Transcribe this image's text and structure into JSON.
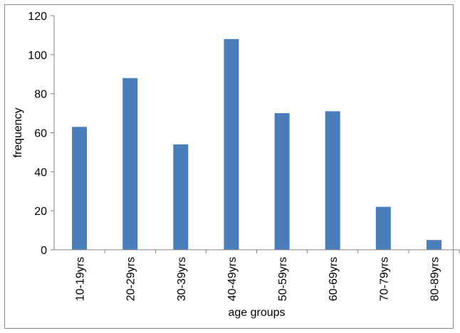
{
  "chart_data": {
    "type": "bar",
    "title": "",
    "xlabel": "age groups",
    "ylabel": "frequency",
    "categories": [
      "10-19yrs",
      "20-29yrs",
      "30-39yrs",
      "40-49yrs",
      "50-59yrs",
      "60-69yrs",
      "70-79yrs",
      "80-89yrs"
    ],
    "values": [
      63,
      88,
      54,
      108,
      70,
      71,
      22,
      5
    ],
    "ylim": [
      0,
      120
    ],
    "yticks": [
      0,
      20,
      40,
      60,
      80,
      100,
      120
    ],
    "grid": false,
    "legend": "none",
    "bar_color": "#4a7ebb",
    "axis_color": "#808080"
  }
}
